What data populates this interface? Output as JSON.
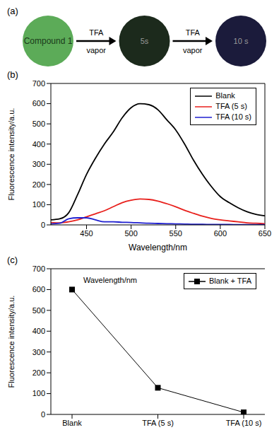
{
  "diagram": {
    "label": "(a)",
    "nodes": [
      {
        "label": "Compound 1",
        "color": "#5cab58"
      },
      {
        "label": "5s",
        "color": "#1c2a1c"
      },
      {
        "label": "10 s",
        "color": "#1b1b3b"
      }
    ],
    "arrows": [
      {
        "from": 0,
        "to": 1,
        "label": [
          "TFA",
          "vapor"
        ]
      },
      {
        "from": 1,
        "to": 2,
        "label": [
          "TFA",
          "vapor"
        ]
      }
    ]
  },
  "chart_data": [
    {
      "type": "line",
      "title": "(b)",
      "x_label": "Wavelength/nm",
      "y_label": "Fluorescence intensity/a.u.",
      "x": [
        410,
        420,
        430,
        440,
        450,
        460,
        470,
        480,
        490,
        500,
        510,
        520,
        530,
        540,
        550,
        560,
        570,
        580,
        590,
        600,
        610,
        620,
        630,
        640,
        650
      ],
      "series": [
        {
          "name": "Blank",
          "color": "#000000",
          "values": [
            25,
            30,
            60,
            150,
            250,
            330,
            400,
            460,
            530,
            580,
            600,
            595,
            570,
            520,
            470,
            400,
            320,
            250,
            190,
            140,
            110,
            85,
            65,
            52,
            45
          ]
        },
        {
          "name": "TFA (5 s)",
          "color": "#e8201c",
          "values": [
            12,
            10,
            15,
            25,
            40,
            55,
            70,
            90,
            110,
            122,
            128,
            126,
            118,
            105,
            90,
            72,
            57,
            43,
            32,
            25,
            20,
            15,
            10,
            8,
            6
          ]
        },
        {
          "name": "TFA (10 s)",
          "color": "#1f1fd0",
          "values": [
            5,
            8,
            30,
            35,
            35,
            25,
            15,
            15,
            13,
            12,
            10,
            8,
            7,
            6,
            5,
            4,
            3,
            3,
            2,
            2,
            2,
            1,
            1,
            1,
            1
          ]
        }
      ],
      "xlim": [
        410,
        650
      ],
      "xticks": [
        450,
        500,
        550,
        600,
        650
      ],
      "ylim": [
        0,
        700
      ],
      "yticks": [
        0,
        100,
        200,
        300,
        400,
        500,
        600,
        700
      ],
      "legend": "upper right"
    },
    {
      "type": "line",
      "title": "(c)",
      "annotation": "Wavelength/nm",
      "y_label": "Fluorescence intensity/a.u.",
      "categories": [
        "Blank",
        "TFA (5 s)",
        "TFA (10 s)"
      ],
      "series": [
        {
          "name": "Blank + TFA",
          "color": "#000000",
          "marker": "square",
          "values": [
            600,
            128,
            10
          ]
        }
      ],
      "ylim": [
        0,
        700
      ],
      "yticks": [
        0,
        100,
        200,
        300,
        400,
        500,
        600,
        700
      ],
      "legend": "upper right"
    }
  ]
}
